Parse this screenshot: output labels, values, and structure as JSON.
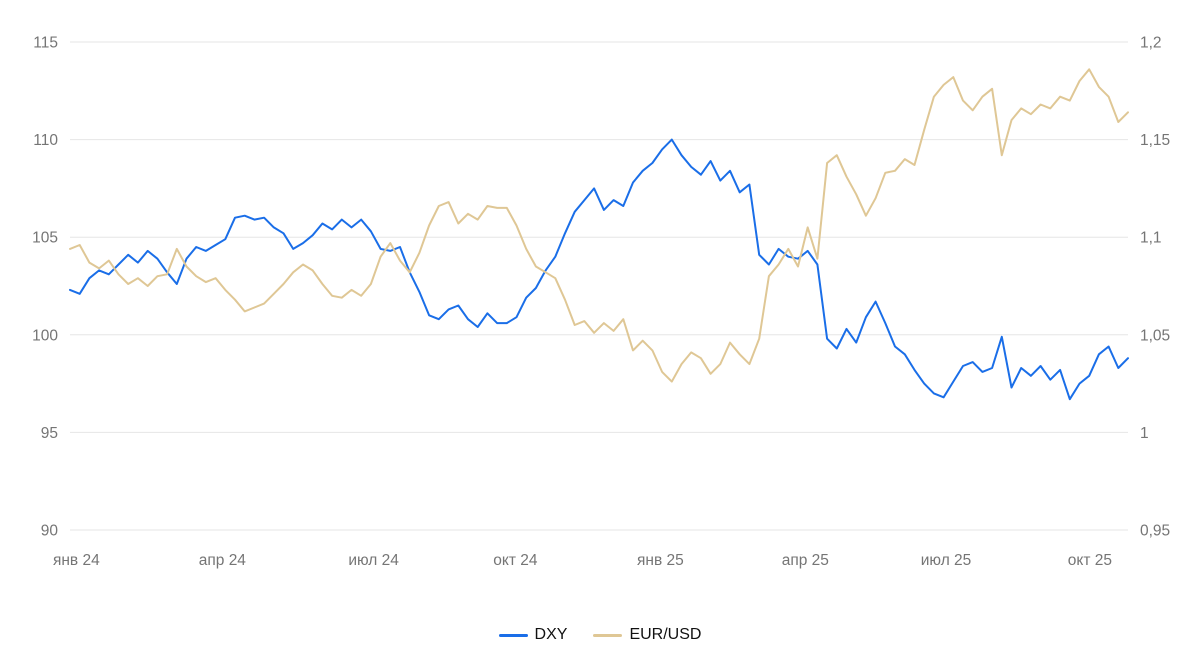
{
  "chart_data": {
    "type": "line",
    "x_start_label": "янв 24",
    "x_end_label": "окт 25",
    "grid": true,
    "grid_color": "#e6e6e6",
    "axis_label_color": "#757575",
    "legend_position": "bottom",
    "legend_text_color": "#111111",
    "x_ticks": [
      {
        "label": "янв 24",
        "pos": 0.006
      },
      {
        "label": "апр 24",
        "pos": 0.144
      },
      {
        "label": "июл 24",
        "pos": 0.287
      },
      {
        "label": "окт 24",
        "pos": 0.421
      },
      {
        "label": "янв 25",
        "pos": 0.558
      },
      {
        "label": "апр 25",
        "pos": 0.695
      },
      {
        "label": "июл 25",
        "pos": 0.828
      },
      {
        "label": "окт 25",
        "pos": 0.964
      }
    ],
    "left_axis": {
      "range": [
        90,
        115
      ],
      "tick_values": [
        115,
        110,
        105,
        100,
        95,
        90
      ],
      "tick_labels": [
        "115",
        "110",
        "105",
        "100",
        "95",
        "90"
      ]
    },
    "right_axis": {
      "range": [
        0.95,
        1.2
      ],
      "tick_values": [
        1.2,
        1.15,
        1.1,
        1.05,
        1.0,
        0.95
      ],
      "tick_labels": [
        "1,2",
        "1,15",
        "1,1",
        "1,05",
        "1",
        "0,95"
      ]
    },
    "series": [
      {
        "name": "DXY",
        "axis": "left",
        "color": "#1a6ee8",
        "values": [
          102.3,
          102.1,
          102.9,
          103.3,
          103.1,
          103.6,
          104.1,
          103.7,
          104.3,
          103.9,
          103.2,
          102.6,
          103.9,
          104.5,
          104.3,
          104.6,
          104.9,
          106.0,
          106.1,
          105.9,
          106.0,
          105.5,
          105.2,
          104.4,
          104.7,
          105.1,
          105.7,
          105.4,
          105.9,
          105.5,
          105.9,
          105.3,
          104.4,
          104.3,
          104.5,
          103.2,
          102.2,
          101.0,
          100.8,
          101.3,
          101.5,
          100.8,
          100.4,
          101.1,
          100.6,
          100.6,
          100.9,
          101.9,
          102.4,
          103.3,
          104.0,
          105.2,
          106.3,
          106.9,
          107.5,
          106.4,
          106.9,
          106.6,
          107.8,
          108.4,
          108.8,
          109.5,
          110.0,
          109.2,
          108.6,
          108.2,
          108.9,
          107.9,
          108.4,
          107.3,
          107.7,
          104.1,
          103.6,
          104.4,
          104.0,
          103.9,
          104.3,
          103.6,
          99.8,
          99.3,
          100.3,
          99.6,
          100.9,
          101.7,
          100.6,
          99.4,
          99.0,
          98.2,
          97.5,
          97.0,
          96.8,
          97.6,
          98.4,
          98.6,
          98.1,
          98.3,
          99.9,
          97.3,
          98.3,
          97.9,
          98.4,
          97.7,
          98.2,
          96.7,
          97.5,
          97.9,
          99.0,
          99.4,
          98.3,
          98.8
        ]
      },
      {
        "name": "EUR/USD",
        "axis": "right",
        "color": "#dfc795",
        "values": [
          1.094,
          1.096,
          1.087,
          1.084,
          1.088,
          1.081,
          1.076,
          1.079,
          1.075,
          1.08,
          1.081,
          1.094,
          1.085,
          1.08,
          1.077,
          1.079,
          1.073,
          1.068,
          1.062,
          1.064,
          1.066,
          1.071,
          1.076,
          1.082,
          1.086,
          1.083,
          1.076,
          1.07,
          1.069,
          1.073,
          1.07,
          1.076,
          1.09,
          1.097,
          1.088,
          1.082,
          1.092,
          1.106,
          1.116,
          1.118,
          1.107,
          1.112,
          1.109,
          1.116,
          1.115,
          1.115,
          1.106,
          1.094,
          1.085,
          1.082,
          1.079,
          1.068,
          1.055,
          1.057,
          1.051,
          1.056,
          1.052,
          1.058,
          1.042,
          1.047,
          1.042,
          1.031,
          1.026,
          1.035,
          1.041,
          1.038,
          1.03,
          1.035,
          1.046,
          1.04,
          1.035,
          1.048,
          1.08,
          1.086,
          1.094,
          1.085,
          1.105,
          1.089,
          1.138,
          1.142,
          1.131,
          1.122,
          1.111,
          1.12,
          1.133,
          1.134,
          1.14,
          1.137,
          1.155,
          1.172,
          1.178,
          1.182,
          1.17,
          1.165,
          1.172,
          1.176,
          1.142,
          1.16,
          1.166,
          1.163,
          1.168,
          1.166,
          1.172,
          1.17,
          1.18,
          1.186,
          1.177,
          1.172,
          1.159,
          1.164
        ]
      }
    ]
  }
}
